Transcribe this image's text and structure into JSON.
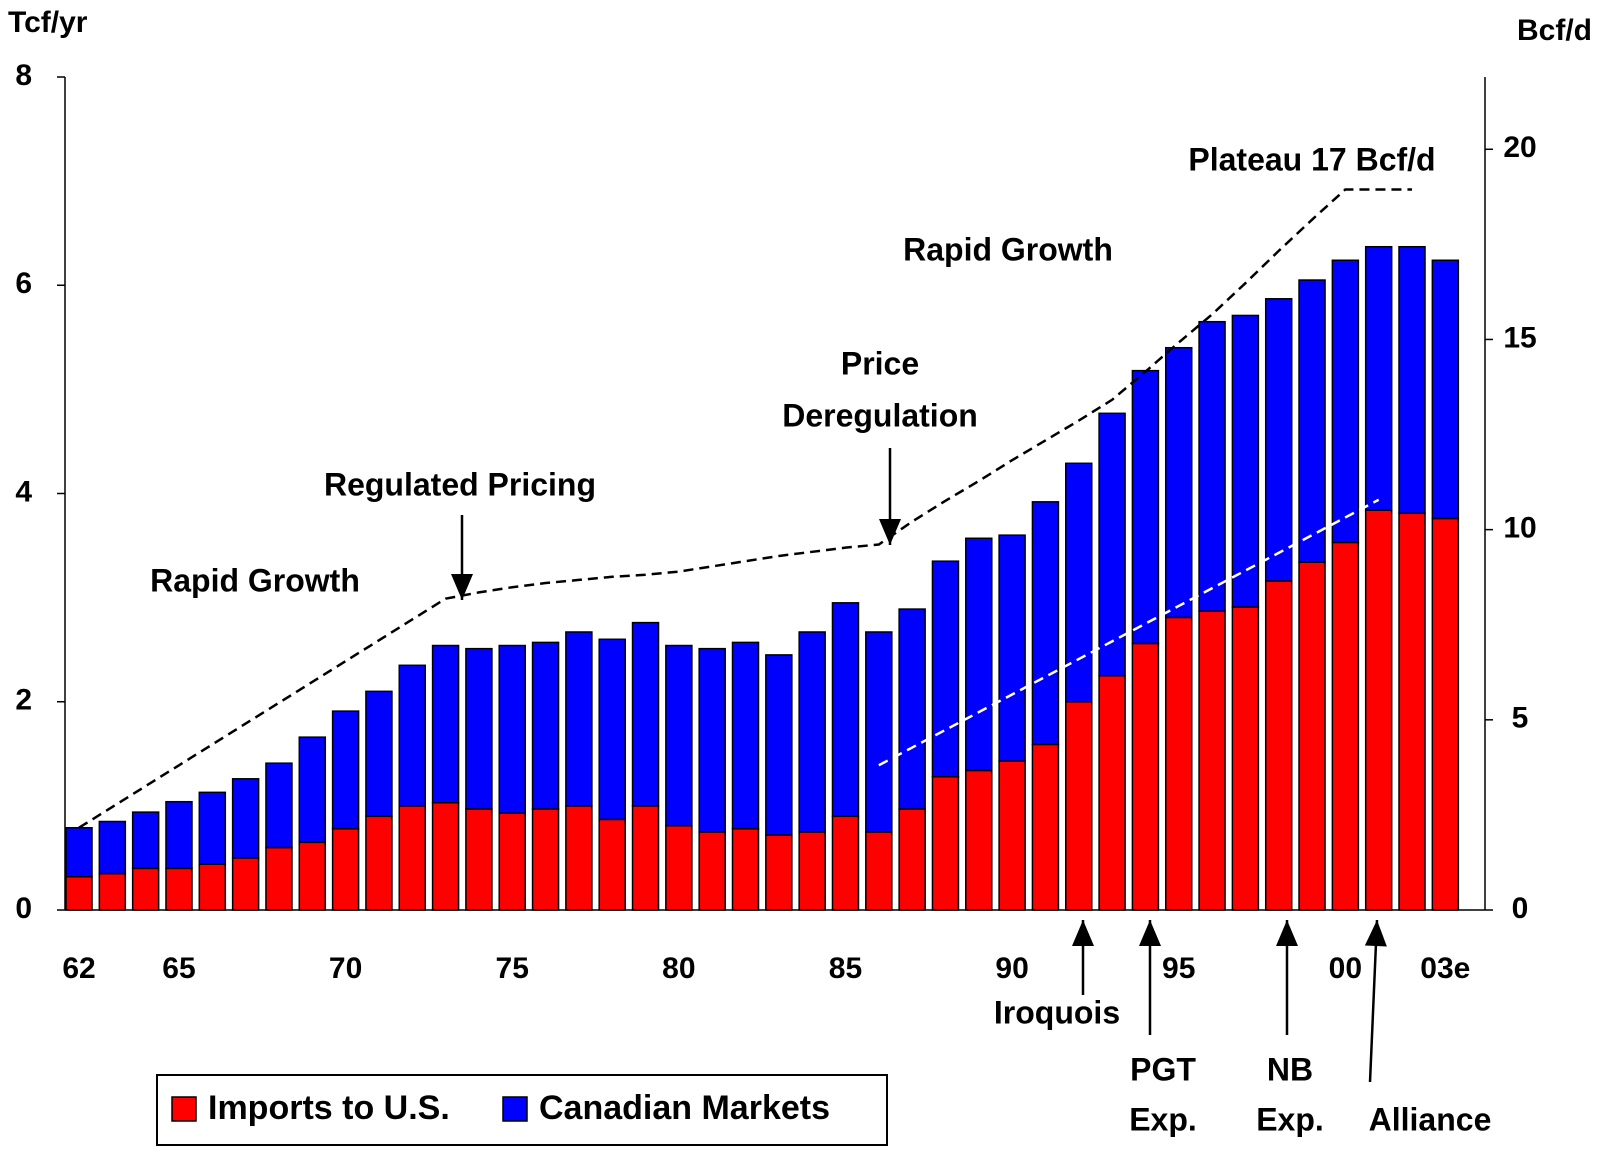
{
  "chart_data": {
    "type": "bar",
    "stacked": true,
    "y_axis_title": "Tcf/yr",
    "y2_axis_title": "Bcf/d",
    "categories": [
      "62",
      null,
      null,
      "65",
      null,
      null,
      null,
      null,
      "70",
      null,
      null,
      null,
      null,
      "75",
      null,
      null,
      null,
      null,
      "80",
      null,
      null,
      null,
      null,
      "85",
      null,
      null,
      null,
      null,
      "90",
      null,
      null,
      null,
      null,
      "95",
      null,
      null,
      null,
      null,
      "00",
      null,
      null,
      "03e"
    ],
    "series": [
      {
        "name": "Imports to U.S.",
        "color": "#ff0000",
        "values": [
          0.32,
          0.35,
          0.4,
          0.4,
          0.44,
          0.5,
          0.6,
          0.65,
          0.78,
          0.9,
          1.0,
          1.03,
          0.97,
          0.93,
          0.97,
          1.0,
          0.87,
          1.0,
          0.81,
          0.75,
          0.78,
          0.72,
          0.75,
          0.9,
          0.75,
          0.97,
          1.28,
          1.34,
          1.43,
          1.59,
          2.0,
          2.25,
          2.56,
          2.81,
          2.87,
          2.91,
          3.16,
          3.34,
          3.53,
          3.84,
          3.81,
          3.76
        ]
      },
      {
        "name": "Canadian Markets",
        "color": "#0000ff",
        "values": [
          0.47,
          0.5,
          0.54,
          0.64,
          0.69,
          0.76,
          0.81,
          1.01,
          1.13,
          1.2,
          1.35,
          1.51,
          1.54,
          1.61,
          1.6,
          1.67,
          1.73,
          1.76,
          1.73,
          1.76,
          1.79,
          1.73,
          1.92,
          2.05,
          1.92,
          1.92,
          2.07,
          2.23,
          2.17,
          2.33,
          2.29,
          2.52,
          2.62,
          2.59,
          2.78,
          2.8,
          2.71,
          2.71,
          2.71,
          2.53,
          2.56,
          2.48
        ]
      }
    ],
    "lines": [
      {
        "color": "#000000",
        "dashed": true,
        "values": [
          0.79,
          0.99,
          1.19,
          1.39,
          1.59,
          1.79,
          1.99,
          2.19,
          2.39,
          2.59,
          2.79,
          2.99,
          3.05,
          3.1,
          3.14,
          3.17,
          3.2,
          3.22,
          3.25,
          3.3,
          3.35,
          3.4,
          3.44,
          3.48,
          3.51,
          3.73,
          3.93,
          4.12,
          4.32,
          4.51,
          4.7,
          4.9,
          5.17,
          5.45,
          5.72,
          6.02,
          6.33,
          6.63,
          6.92,
          6.92,
          6.92,
          null
        ]
      },
      {
        "color": "#ffffff",
        "dashed": true,
        "values": [
          null,
          null,
          null,
          null,
          null,
          null,
          null,
          null,
          null,
          null,
          null,
          null,
          null,
          null,
          null,
          null,
          null,
          null,
          null,
          null,
          null,
          null,
          null,
          null,
          1.39,
          1.56,
          1.73,
          1.9,
          2.07,
          2.24,
          2.41,
          2.58,
          2.75,
          2.92,
          3.09,
          3.26,
          3.43,
          3.6,
          3.77,
          3.94,
          null,
          null
        ]
      }
    ],
    "ylim": [
      0,
      8
    ],
    "yticks": [
      0,
      2,
      4,
      6,
      8
    ],
    "y2lim": [
      0,
      21.9
    ],
    "y2ticks": [
      0,
      5,
      10,
      15,
      20
    ],
    "annotations": [
      {
        "lines": [
          "Rapid Growth"
        ]
      },
      {
        "lines": [
          "Regulated Pricing"
        ]
      },
      {
        "lines": [
          "Price",
          "Deregulation"
        ]
      },
      {
        "lines": [
          "Rapid Growth"
        ]
      },
      {
        "lines": [
          "Plateau 17 Bcf/d"
        ]
      },
      {
        "lines": [
          "Iroquois"
        ]
      },
      {
        "lines": [
          "PGT",
          "Exp."
        ]
      },
      {
        "lines": [
          "NB",
          "Exp."
        ]
      },
      {
        "lines": [
          "Alliance"
        ]
      }
    ],
    "legend": "bottom-left"
  }
}
